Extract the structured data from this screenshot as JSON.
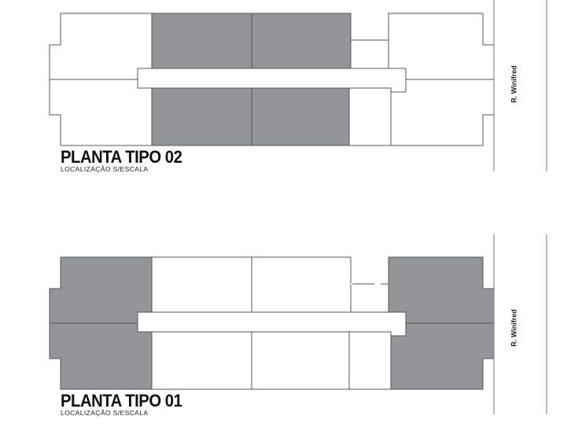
{
  "colors": {
    "occupied_unit": "#939598",
    "free_unit": "#ffffff",
    "lines": "#555555"
  },
  "plans": [
    {
      "title": "PLANTA TIPO 02",
      "subtitle": "LOCALIZAÇÃO S/ESCALA",
      "street": "R. Winifred",
      "highlighted": [
        "center-top-left",
        "center-top-right",
        "center-bottom-left",
        "center-bottom-right"
      ]
    },
    {
      "title": "PLANTA TIPO 01",
      "subtitle": "LOCALIZAÇÃO S/ESCALA",
      "street": "R. Winifred",
      "highlighted": [
        "left-top",
        "left-bottom",
        "right-top",
        "right-bottom"
      ]
    }
  ]
}
